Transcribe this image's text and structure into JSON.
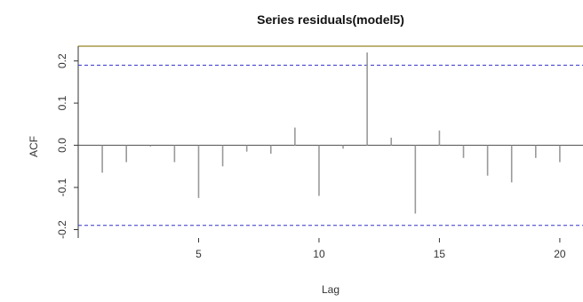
{
  "chart_data": {
    "type": "bar",
    "title": "Series residuals(model5)",
    "xlabel": "Lag",
    "ylabel": "ACF",
    "lags": [
      1,
      2,
      3,
      4,
      5,
      6,
      7,
      8,
      9,
      10,
      11,
      12,
      13,
      14,
      15,
      16,
      17,
      18,
      19,
      20
    ],
    "values": [
      -0.065,
      -0.04,
      -0.003,
      -0.04,
      -0.125,
      -0.05,
      -0.015,
      -0.02,
      0.042,
      -0.12,
      -0.008,
      0.22,
      0.018,
      -0.162,
      0.035,
      -0.03,
      -0.072,
      -0.088,
      -0.03,
      -0.04
    ],
    "confidence_limit": 0.19,
    "xlim": [
      0,
      21
    ],
    "ylim": [
      -0.22,
      0.235
    ],
    "xticks": [
      "5",
      "10",
      "15",
      "20"
    ],
    "yticks": [
      "-0.2",
      "-0.1",
      "0.0",
      "0.1",
      "0.2"
    ],
    "colors": {
      "bars": "#9a9a9a",
      "ci": "#3333cc",
      "frame": "#a89a4a",
      "zero": "#555555"
    }
  }
}
